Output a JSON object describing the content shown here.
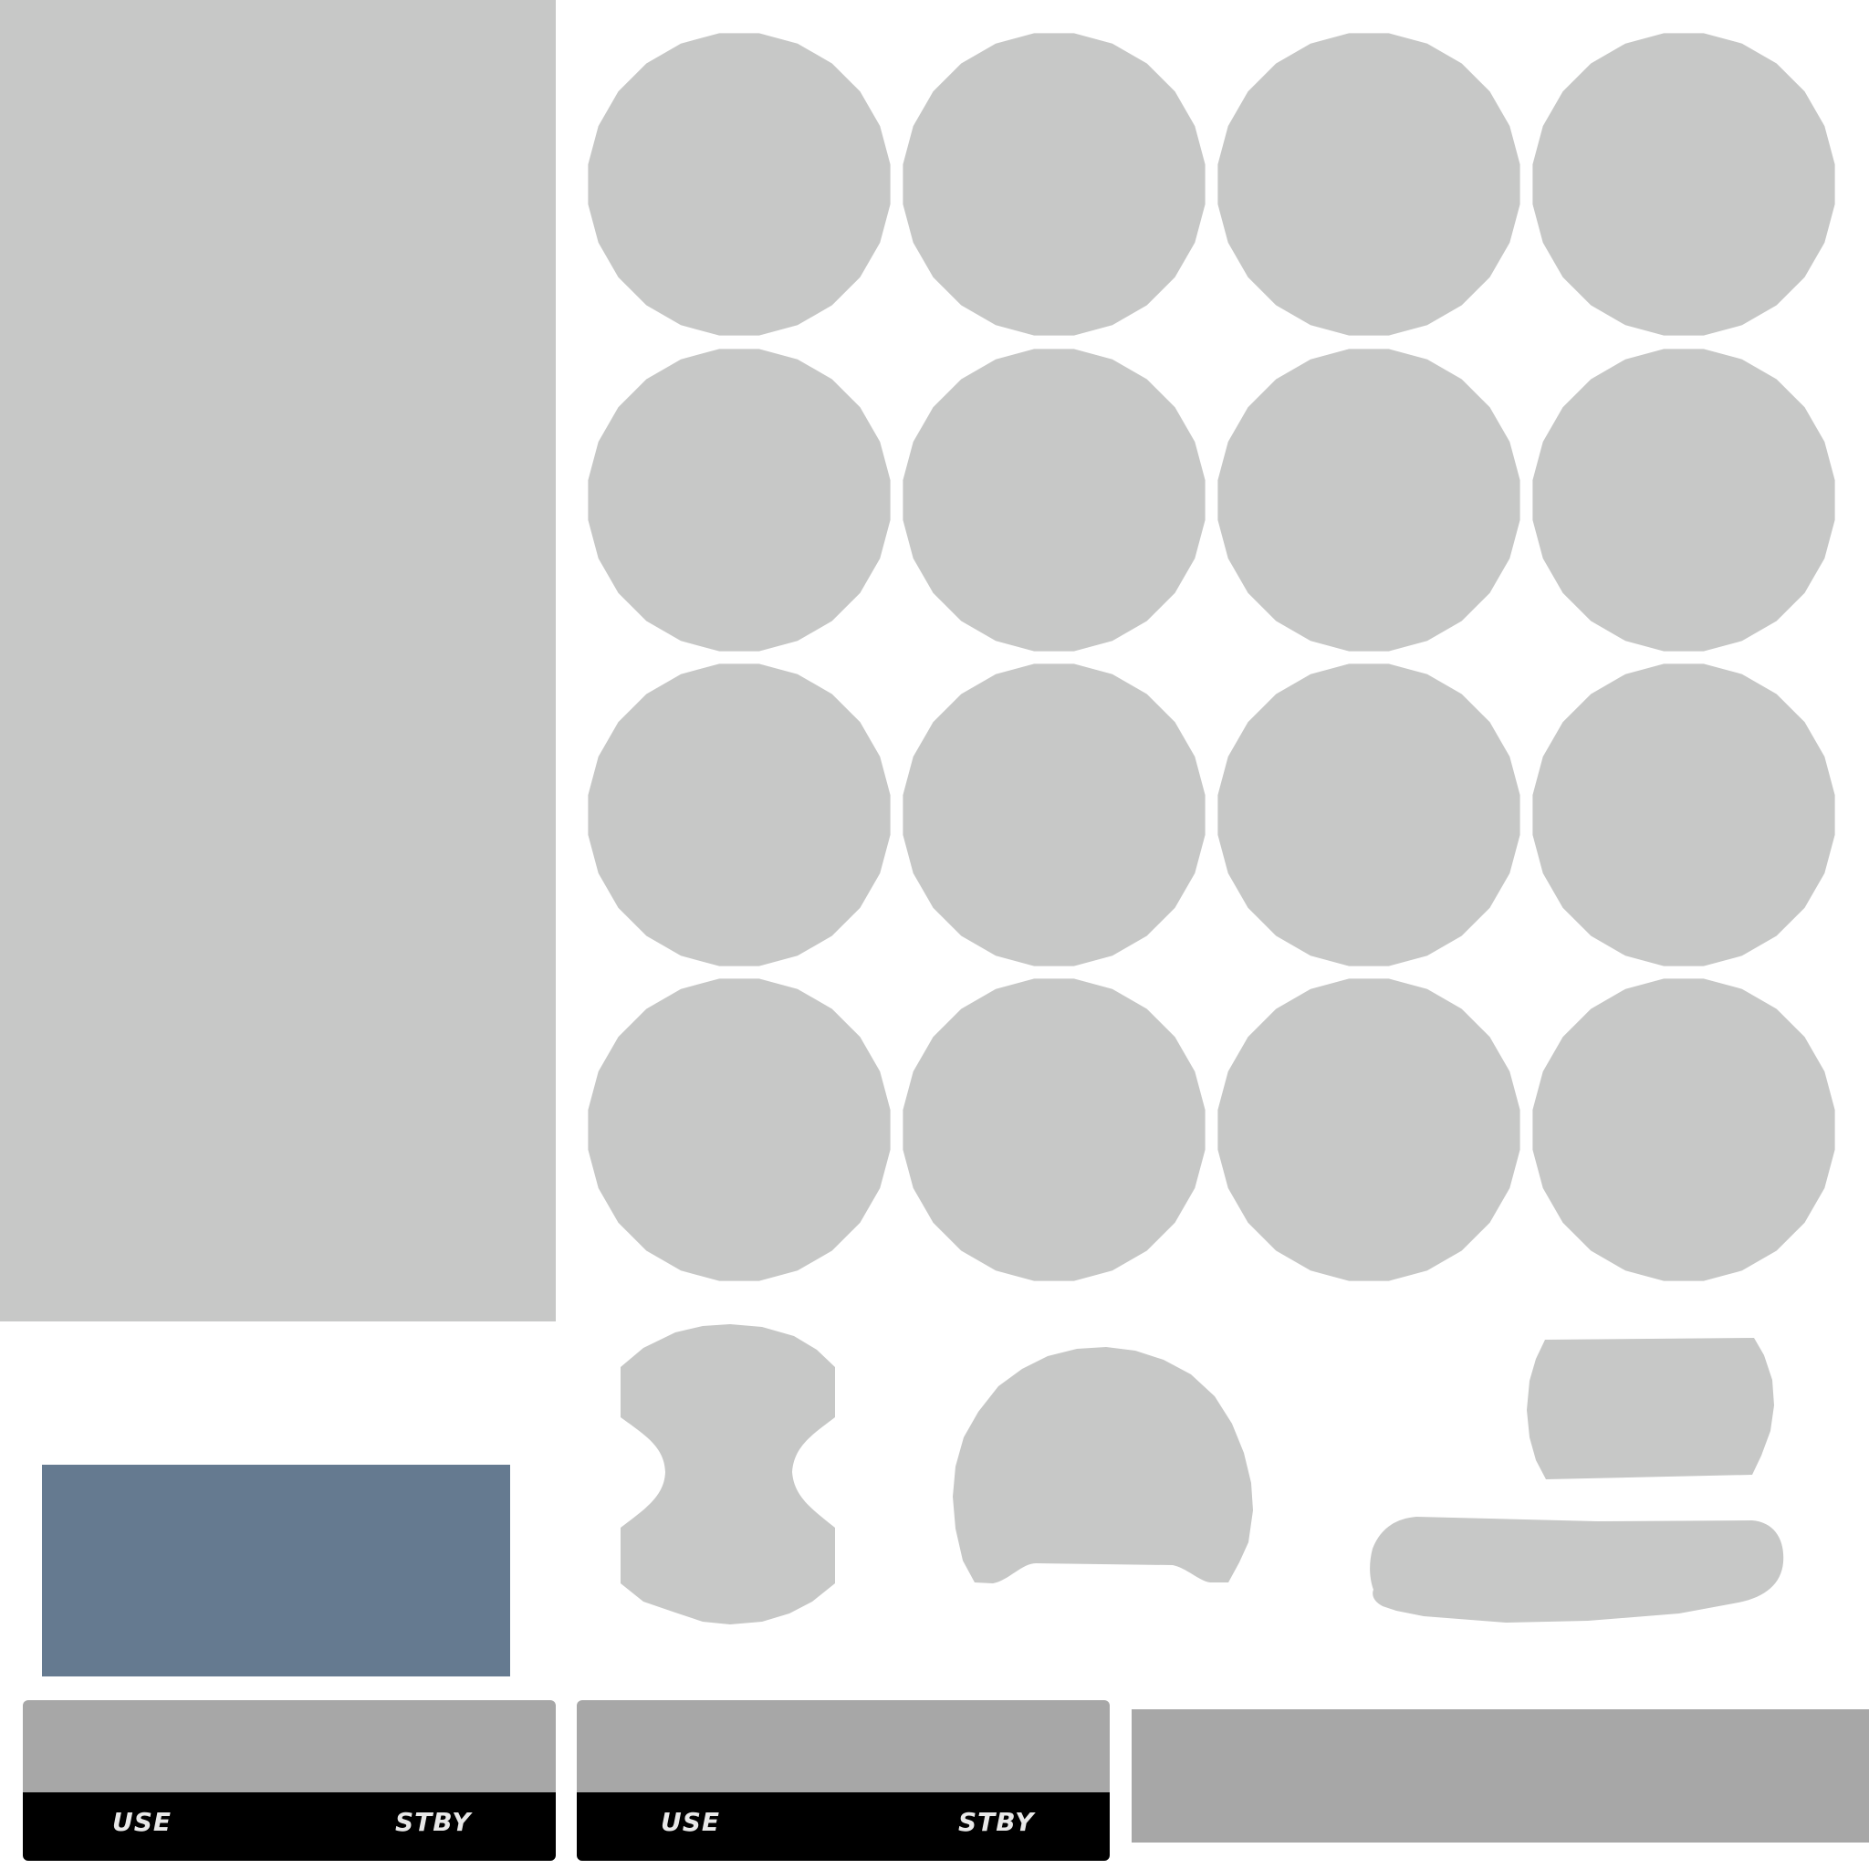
{
  "colors": {
    "background": "#ffffff",
    "shape_gray": "#c7c8c7",
    "blue_panel": "#657a90",
    "bar_gray": "#a7a7a7",
    "display_black": "#000000",
    "label_text": "#e8e8e8"
  },
  "displays": [
    {
      "use_label": "USE",
      "stby_label": "STBY"
    },
    {
      "use_label": "USE",
      "stby_label": "STBY"
    }
  ]
}
